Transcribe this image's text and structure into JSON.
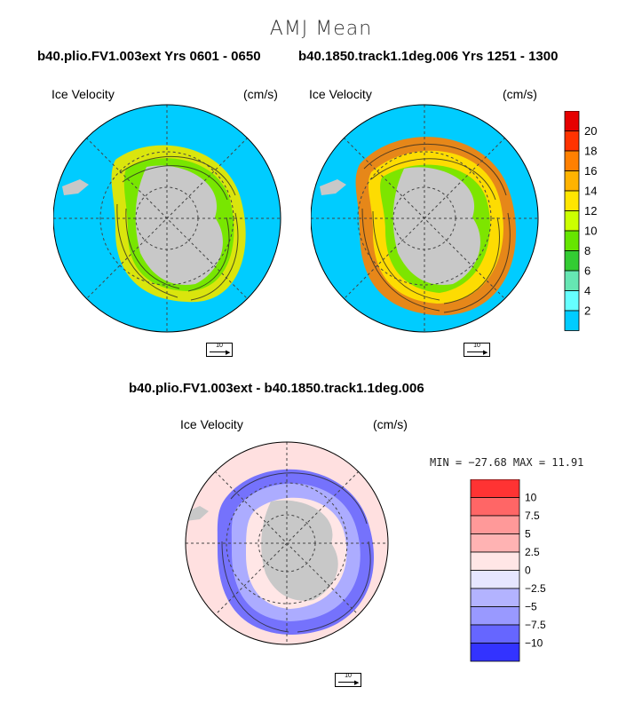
{
  "title": "AMJ Mean",
  "panel_left": {
    "subtitle": "b40.plio.FV1.003ext  Yrs 0601 - 0650",
    "variable": "Ice Velocity",
    "units": "(cm/s)",
    "ref_vector": "10"
  },
  "panel_right": {
    "subtitle": "b40.1850.track1.1deg.006  Yrs 1251 - 1300",
    "variable": "Ice Velocity",
    "units": "(cm/s)",
    "ref_vector": "10"
  },
  "diff": {
    "subtitle": "b40.plio.FV1.003ext - b40.1850.track1.1deg.006",
    "variable": "Ice Velocity",
    "units": "(cm/s)",
    "minmax": "MIN = −27.68 MAX =  11.91",
    "ref_vector": "10"
  },
  "colorbar_top": {
    "labels": [
      "20",
      "18",
      "16",
      "14",
      "12",
      "10",
      "8",
      "6",
      "4",
      "2"
    ],
    "colors": [
      "#e60000",
      "#ff3300",
      "#ff8000",
      "#ffb300",
      "#ffe600",
      "#ccff00",
      "#66e600",
      "#33cc33",
      "#66e6b3",
      "#66ffff",
      "#00ccff"
    ]
  },
  "colorbar_diff": {
    "labels": [
      "10",
      "7.5",
      "5",
      "2.5",
      "0",
      "−2.5",
      "−5",
      "−7.5",
      "−10"
    ],
    "colors": [
      "#ff3333",
      "#ff6666",
      "#ff9999",
      "#ffb3b3",
      "#ffe6e6",
      "#e6e6ff",
      "#b3b3ff",
      "#9999ff",
      "#6666ff",
      "#3333ff"
    ]
  },
  "colors": {
    "ocean": "#00ccff",
    "land": "#c8c8c8",
    "diff_background": "#ffe0e0"
  }
}
